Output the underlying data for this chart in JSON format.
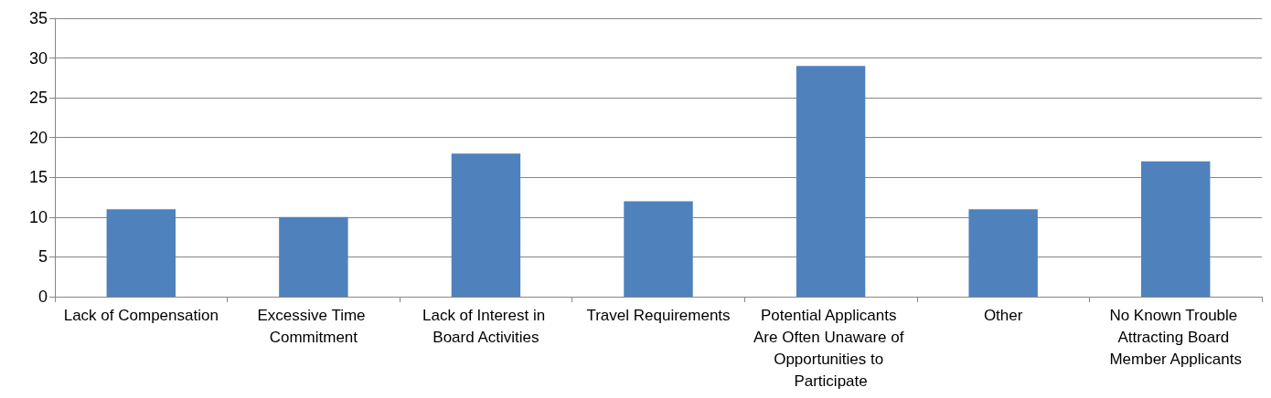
{
  "chart_data": {
    "type": "bar",
    "categories": [
      "Lack of Compensation",
      "Excessive Time Commitment",
      "Lack of Interest in Board Activities",
      "Travel Requirements",
      "Potential Applicants Are Often Unaware of Opportunities to Participate",
      "Other",
      "No Known Trouble Attracting Board Member Applicants"
    ],
    "values": [
      11,
      10,
      18,
      12,
      29,
      11,
      17
    ],
    "color": "#4f81bd",
    "ylim": [
      0,
      35
    ],
    "yticks": [
      0,
      5,
      10,
      15,
      20,
      25,
      30,
      35
    ],
    "grid": "y"
  }
}
